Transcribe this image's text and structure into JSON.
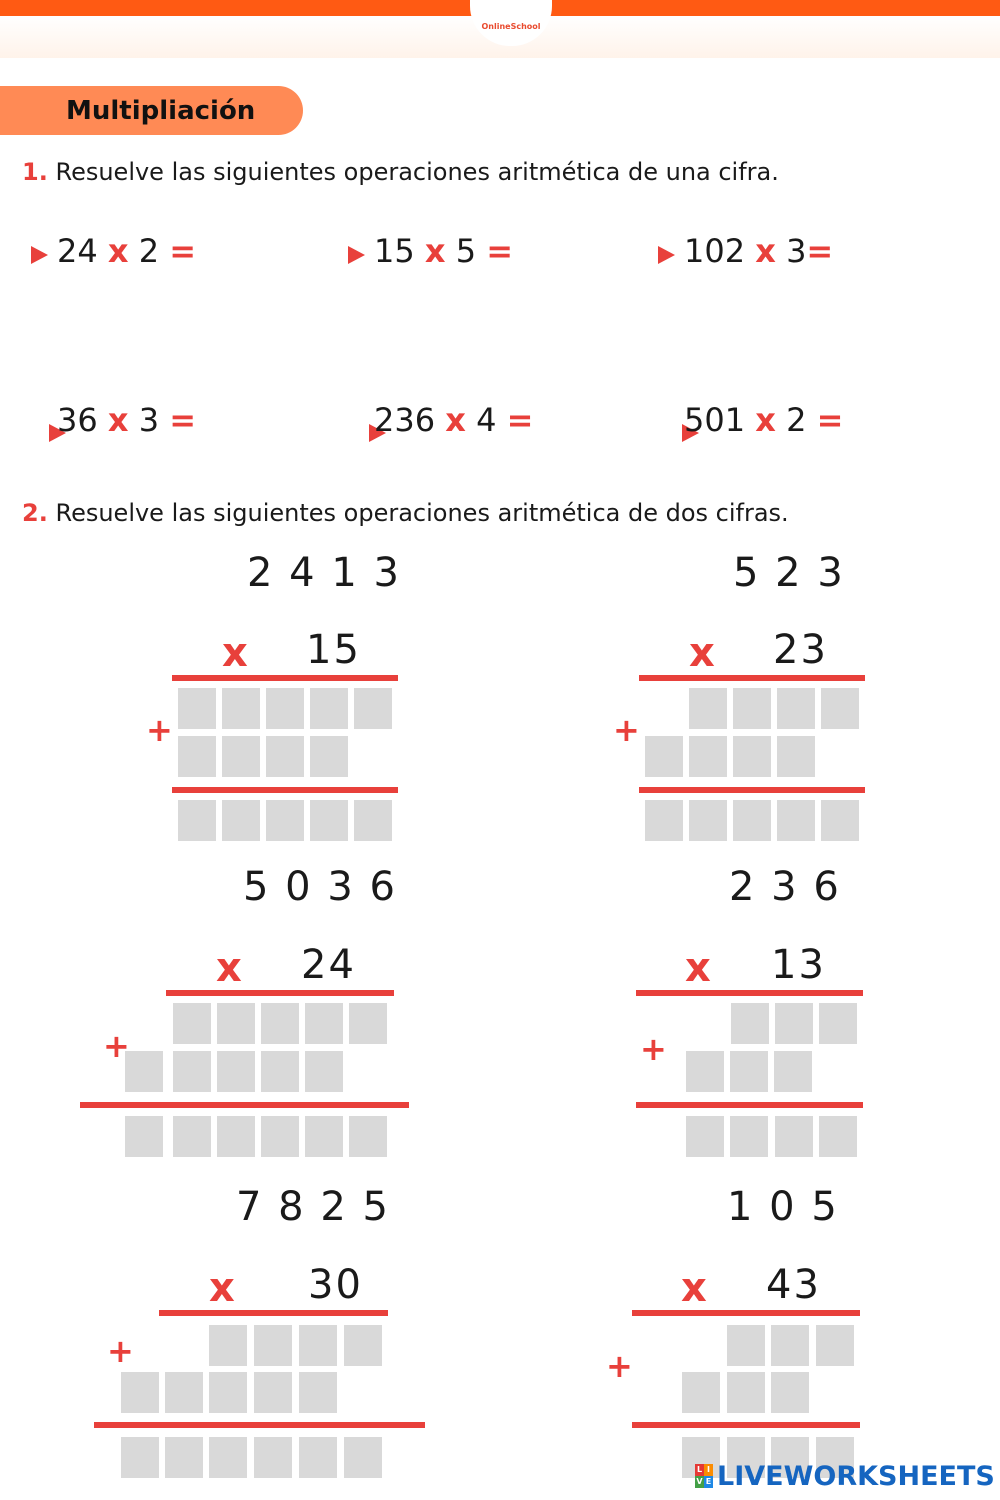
{
  "header": {
    "logo_text": "OnlineSchool"
  },
  "title": "Multipliación",
  "section1": {
    "number": "1.",
    "instruction": "Resuelve las  siguientes operaciones aritmética de una cifra.",
    "ops": [
      {
        "a": "24",
        "x": "x",
        "b": "2",
        "eq": "="
      },
      {
        "a": "15",
        "x": "x",
        "b": "5",
        "eq": "="
      },
      {
        "a": "102",
        "x": "x",
        "b": "3",
        "eq": "="
      },
      {
        "a": "36",
        "x": "x",
        "b": "3",
        "eq": "="
      },
      {
        "a": "236",
        "x": "x",
        "b": "4",
        "eq": "="
      },
      {
        "a": "501",
        "x": "x",
        "b": "2",
        "eq": "="
      }
    ]
  },
  "section2": {
    "number": "2.",
    "instruction": "Resuelve las  siguientes operaciones aritmética de dos cifras.",
    "problems": [
      {
        "multiplicand": "2 4 1 3",
        "multiplier": "15",
        "x": "x",
        "plus": "+"
      },
      {
        "multiplicand": "5 2 3",
        "multiplier": "23",
        "x": "x",
        "plus": "+"
      },
      {
        "multiplicand": "5 0 3 6",
        "multiplier": "24",
        "x": "x",
        "plus": "+"
      },
      {
        "multiplicand": "2 3 6",
        "multiplier": "13",
        "x": "x",
        "plus": "+"
      },
      {
        "multiplicand": "7 8 2 5",
        "multiplier": "30",
        "x": "x",
        "plus": "+"
      },
      {
        "multiplicand": "1 0 5",
        "multiplier": "43",
        "x": "x",
        "plus": "+"
      }
    ]
  },
  "footer": {
    "brand": "LIVEWORKSHEETS",
    "icon_letters": [
      "L",
      "I",
      "V",
      "E"
    ]
  },
  "colors": {
    "accent": "#e8403b",
    "orange": "#ff5a13",
    "pill": "#ff8a55",
    "answer_box": "#d9d9d9",
    "brand_blue": "#1565c0"
  }
}
